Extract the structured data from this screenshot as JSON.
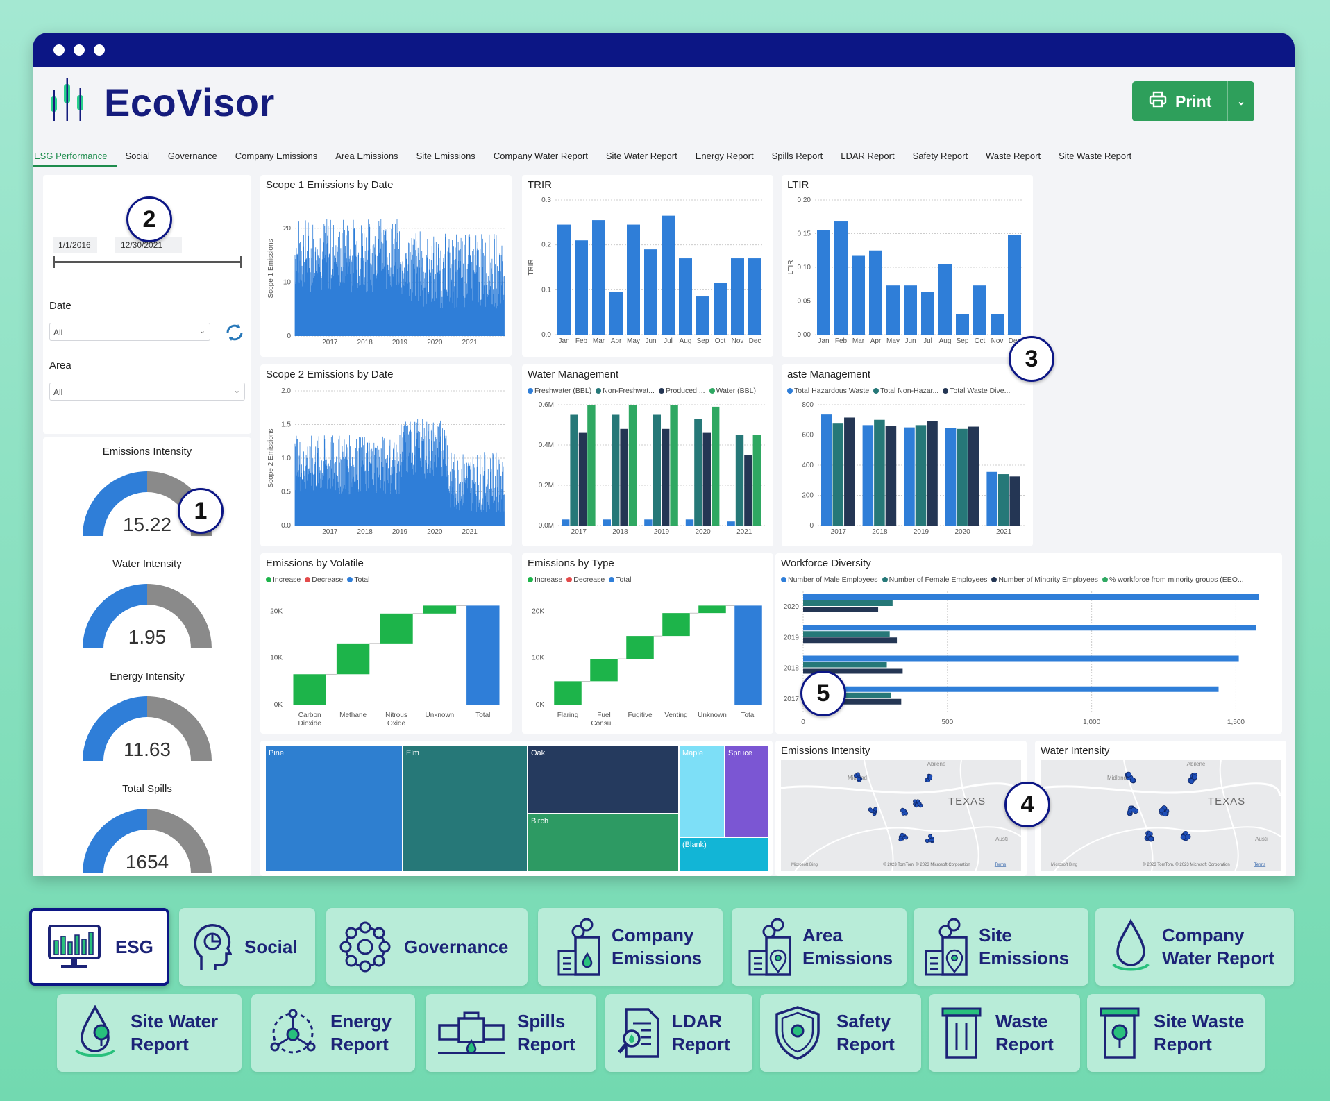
{
  "app": {
    "name": "EcoVisor",
    "print_label": "Print"
  },
  "tabs": [
    "ESG Performance",
    "Social",
    "Governance",
    "Company Emissions",
    "Area Emissions",
    "Site Emissions",
    "Company Water Report",
    "Site Water Report",
    "Energy Report",
    "Spills Report",
    "LDAR Report",
    "Safety Report",
    "Waste Report",
    "Site Waste Report"
  ],
  "filters": {
    "date_start": "1/1/2016",
    "date_end": "12/30/2021",
    "date_label": "Date",
    "date_value": "All",
    "area_label": "Area",
    "area_value": "All"
  },
  "gauges": [
    {
      "label": "Emissions Intensity",
      "value": "15.22",
      "fill": 0.5
    },
    {
      "label": "Water Intensity",
      "value": "1.95",
      "fill": 0.5
    },
    {
      "label": "Energy Intensity",
      "value": "11.63",
      "fill": 0.5
    },
    {
      "label": "Total Spills",
      "value": "1654",
      "fill": 0.5
    }
  ],
  "badges": [
    "1",
    "2",
    "3",
    "4",
    "5"
  ],
  "maps": {
    "emissions_title": "Emissions Intensity",
    "water_title": "Water Intensity",
    "city1": "Midland",
    "city2": "Abilene",
    "state": "TEXAS",
    "city3": "Austi",
    "attribution": "© 2023 TomTom, © 2023 Microsoft Corporation",
    "terms": "Terms",
    "bing": "Microsoft Bing"
  },
  "treemap": [
    {
      "name": "Pine",
      "color": "#2e7fd0"
    },
    {
      "name": "Elm",
      "color": "#267878"
    },
    {
      "name": "Oak",
      "color": "#253a5e"
    },
    {
      "name": "Birch",
      "color": "#2d9a63"
    },
    {
      "name": "Maple",
      "color": "#7ddff7"
    },
    {
      "name": "Spruce",
      "color": "#7b56d3"
    },
    {
      "name": "(Blank)",
      "color": "#12b5d6"
    }
  ],
  "colors": {
    "blue": "#2f7ed8",
    "teal": "#267878",
    "navy": "#243654",
    "green": "#2fa862",
    "gray": "#8a8a8a",
    "wf_green": "#1db44a",
    "wf_red": "#e34a4a",
    "accent": "#1e8c4d",
    "window_bar": "#0c1685"
  },
  "chart_data": [
    {
      "id": "scope1",
      "type": "bar",
      "title": "Scope 1 Emissions by Date",
      "ylabel": "Scope 1 Emissions",
      "ylim": [
        0,
        25
      ],
      "yticks": [
        0,
        10,
        20
      ],
      "x_ticks": [
        "2017",
        "2018",
        "2019",
        "2020",
        "2021"
      ],
      "series": [
        {
          "values_summary": "daily values fluctuating mostly between 5 and 24 from 2016 to 2021"
        }
      ]
    },
    {
      "id": "scope2",
      "type": "bar",
      "title": "Scope 2 Emissions by Date",
      "ylabel": "Scope 2 Emissions",
      "ylim": [
        0,
        2.0
      ],
      "yticks": [
        "0.0",
        "0.5",
        "1.0",
        "1.5",
        "2.0"
      ],
      "x_ticks": [
        "2017",
        "2018",
        "2019",
        "2020",
        "2021"
      ],
      "series": [
        {
          "values_summary": "daily values mostly 0.4 to 1.3; higher (up to 1.6) in late 2019 to mid 2020"
        }
      ]
    },
    {
      "id": "trir",
      "type": "bar",
      "title": "TRIR",
      "ylabel": "TRIR",
      "ylim": [
        0,
        0.3
      ],
      "yticks": [
        "0.0",
        "0.1",
        "0.2",
        "0.3"
      ],
      "categories": [
        "Jan",
        "Feb",
        "Mar",
        "Apr",
        "May",
        "Jun",
        "Jul",
        "Aug",
        "Sep",
        "Oct",
        "Nov",
        "Dec"
      ],
      "values": [
        0.245,
        0.21,
        0.255,
        0.095,
        0.245,
        0.19,
        0.265,
        0.17,
        0.085,
        0.115,
        0.17,
        0.17
      ]
    },
    {
      "id": "ltir",
      "type": "bar",
      "title": "LTIR",
      "ylabel": "LTIR",
      "ylim": [
        0,
        0.2
      ],
      "yticks": [
        "0.00",
        "0.05",
        "0.10",
        "0.15",
        "0.20"
      ],
      "categories": [
        "Jan",
        "Feb",
        "Mar",
        "Apr",
        "May",
        "Jun",
        "Jul",
        "Aug",
        "Sep",
        "Oct",
        "Nov",
        "Dec"
      ],
      "values": [
        0.155,
        0.168,
        0.117,
        0.125,
        0.073,
        0.073,
        0.063,
        0.105,
        0.03,
        0.073,
        0.03,
        0.148
      ]
    },
    {
      "id": "water",
      "type": "bar",
      "title": "Water Management",
      "ylim": [
        0,
        0.6
      ],
      "yticks": [
        "0.0M",
        "0.2M",
        "0.4M",
        "0.6M"
      ],
      "categories": [
        "2017",
        "2018",
        "2019",
        "2020",
        "2021"
      ],
      "legend": [
        "Freshwater (BBL)",
        "Non-Freshwat...",
        "Produced ...",
        "Water (BBL)"
      ],
      "series": [
        {
          "name": "Freshwater (BBL)",
          "values": [
            0.03,
            0.03,
            0.03,
            0.03,
            0.02
          ]
        },
        {
          "name": "Non-Freshwat...",
          "values": [
            0.55,
            0.55,
            0.55,
            0.53,
            0.45
          ]
        },
        {
          "name": "Produced ...",
          "values": [
            0.46,
            0.48,
            0.48,
            0.46,
            0.35
          ]
        },
        {
          "name": "Water (BBL)",
          "values": [
            0.6,
            0.6,
            0.6,
            0.59,
            0.45
          ]
        }
      ]
    },
    {
      "id": "waste",
      "type": "bar",
      "title": "aste Management",
      "ylim": [
        0,
        800
      ],
      "yticks": [
        "0",
        "200",
        "400",
        "600",
        "800"
      ],
      "categories": [
        "2017",
        "2018",
        "2019",
        "2020",
        "2021"
      ],
      "legend": [
        "Total Hazardous Waste",
        "Total Non-Hazar...",
        "Total Waste Dive..."
      ],
      "series": [
        {
          "name": "Total Hazardous Waste",
          "values": [
            735,
            665,
            650,
            645,
            355
          ]
        },
        {
          "name": "Total Non-Hazar...",
          "values": [
            675,
            700,
            665,
            640,
            340
          ]
        },
        {
          "name": "Total Waste Dive...",
          "values": [
            715,
            660,
            690,
            655,
            325
          ]
        }
      ]
    },
    {
      "id": "volatile",
      "type": "waterfall",
      "title": "Emissions by Volatile",
      "legend": [
        "Increase",
        "Decrease",
        "Total"
      ],
      "ylim": [
        0,
        22000
      ],
      "yticks": [
        "0K",
        "10K",
        "20K"
      ],
      "categories": [
        "Carbon Dioxide",
        "Methane",
        "Nitrous Oxide",
        "Unknown",
        "Total"
      ],
      "values": [
        6500,
        6600,
        6400,
        1700,
        21200
      ]
    },
    {
      "id": "type",
      "type": "waterfall",
      "title": "Emissions by Type",
      "legend": [
        "Increase",
        "Decrease",
        "Total"
      ],
      "ylim": [
        0,
        22000
      ],
      "yticks": [
        "0K",
        "10K",
        "20K"
      ],
      "categories": [
        "Flaring",
        "Fuel Consu...",
        "Fugitive",
        "Venting",
        "Unknown",
        "Total"
      ],
      "values": [
        5000,
        4800,
        4900,
        4900,
        1600,
        21200
      ]
    },
    {
      "id": "workforce",
      "type": "bar",
      "orientation": "horizontal",
      "title": "Workforce Diversity",
      "legend": [
        "Number of Male Employees",
        "Number of Female Employees",
        "Number of Minority Employees",
        "% workforce from minority groups (EEO..."
      ],
      "xlim": [
        0,
        1600
      ],
      "xticks": [
        "0",
        "500",
        "1,000",
        "1,500"
      ],
      "categories": [
        "2020",
        "2019",
        "2018",
        "2017"
      ],
      "series": [
        {
          "name": "Number of Male Employees",
          "values": [
            1580,
            1570,
            1510,
            1440
          ]
        },
        {
          "name": "Number of Female Employees",
          "values": [
            310,
            300,
            290,
            305
          ]
        },
        {
          "name": "Number of Minority Employees",
          "values": [
            260,
            325,
            345,
            340
          ]
        }
      ]
    }
  ],
  "nav": {
    "esg": "ESG",
    "social": "Social",
    "governance": "Governance",
    "company_emissions": [
      "Company",
      "Emissions"
    ],
    "area_emissions": [
      "Area",
      "Emissions"
    ],
    "site_emissions": [
      "Site",
      "Emissions"
    ],
    "company_water": [
      "Company",
      "Water Report"
    ],
    "site_water": [
      "Site Water",
      "Report"
    ],
    "energy": [
      "Energy",
      "Report"
    ],
    "spills": [
      "Spills",
      "Report"
    ],
    "ldar": [
      "LDAR",
      "Report"
    ],
    "safety": [
      "Safety",
      "Report"
    ],
    "waste": [
      "Waste",
      "Report"
    ],
    "site_waste": [
      "Site Waste",
      "Report"
    ]
  }
}
